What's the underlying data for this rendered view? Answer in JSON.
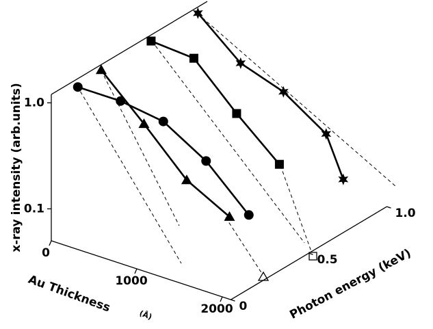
{
  "chart_data": {
    "type": "line3d",
    "zlabel": "x-ray intensity (arb.units)",
    "xlabel": "Au Thickness",
    "xlabel_unit": "(Å)",
    "ylabel": "Photon energy (keV)",
    "xlim": [
      0,
      2100
    ],
    "xticks": [
      0,
      1000,
      2000
    ],
    "ylim": [
      0,
      1.0
    ],
    "yticks": [
      0,
      0.5,
      {
        "value": 1.0,
        "label": "1.0"
      }
    ],
    "zlim": [
      0.05,
      1.2
    ],
    "zticks": [
      0.1,
      {
        "value": 1.0,
        "label": "1.0"
      }
    ],
    "zscale": "log",
    "color": "#000000",
    "series": [
      {
        "marker": "circle",
        "energy": 0.17,
        "x": [
          0,
          500,
          1000,
          1500,
          2000
        ],
        "values": [
          1.0,
          1.0,
          0.87,
          0.5,
          0.21
        ]
      },
      {
        "marker": "triangle",
        "energy": 0.32,
        "x": [
          0,
          500,
          1000,
          1500
        ],
        "values": [
          1.07,
          0.45,
          0.18,
          0.11
        ]
      },
      {
        "marker": "square",
        "energy": 0.64,
        "x": [
          0,
          500,
          1000,
          1500
        ],
        "values": [
          1.05,
          0.98,
          0.4,
          0.18
        ]
      },
      {
        "marker": "star",
        "energy": 0.94,
        "x": [
          0,
          500,
          1000,
          1500,
          1700
        ],
        "values": [
          1.05,
          0.48,
          0.35,
          0.19,
          0.08
        ]
      }
    ]
  }
}
